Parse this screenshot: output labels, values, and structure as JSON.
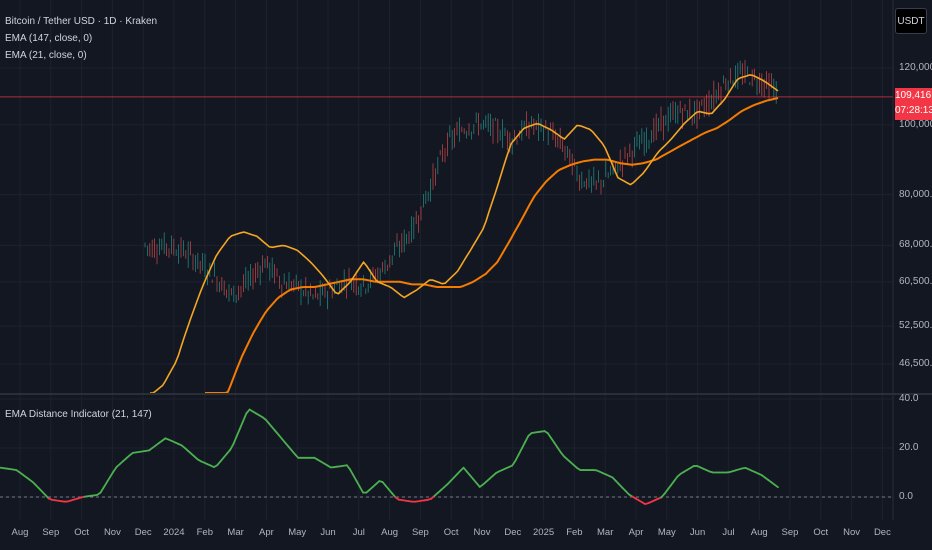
{
  "legend": {
    "title": "Bitcoin / Tether USD · 1D · Kraken",
    "ema_long": "EMA (147, close, 0)",
    "ema_short": "EMA (21, close, 0)"
  },
  "indicator": {
    "label": "EMA Distance Indicator (21, 147)",
    "ticks": [
      {
        "label": "40.0",
        "value": 40
      },
      {
        "label": "20.0",
        "value": 20
      },
      {
        "label": "0.0",
        "value": 0
      }
    ]
  },
  "currency_button": "USDT",
  "price_tag": {
    "price": "109,416.1",
    "countdown": "07:28:13"
  },
  "price_axis": [
    {
      "label": "120,000.0",
      "value": 120000
    },
    {
      "label": "100,000.0",
      "value": 100000
    },
    {
      "label": "80,000.0",
      "value": 80000
    },
    {
      "label": "68,000.0",
      "value": 68000
    },
    {
      "label": "60,500.0",
      "value": 60500
    },
    {
      "label": "52,500.0",
      "value": 52500
    },
    {
      "label": "46,500.0",
      "value": 46500
    }
  ],
  "time_axis": [
    "Aug",
    "Sep",
    "Oct",
    "Nov",
    "Dec",
    "2024",
    "Feb",
    "Mar",
    "Apr",
    "May",
    "Jun",
    "Jul",
    "Aug",
    "Sep",
    "Oct",
    "Nov",
    "Dec",
    "2025",
    "Feb",
    "Mar",
    "Apr",
    "May",
    "Jun",
    "Jul",
    "Aug",
    "Sep",
    "Oct",
    "Nov",
    "Dec"
  ],
  "colors": {
    "background": "#131722",
    "ema_short": "#f5a623",
    "ema_long": "#f57c00",
    "up": "#26a69a",
    "down": "#ef5350",
    "indicator_pos": "#4caf50",
    "indicator_neg": "#f23645",
    "last_price": "#f23645"
  },
  "chart_data": {
    "type": "line",
    "y_scale": "log",
    "last_price": 109416.1,
    "ema_short_series": [
      42000,
      43500,
      47000,
      53500,
      60000,
      66000,
      70000,
      71000,
      70000,
      67500,
      68000,
      67000,
      64500,
      61500,
      58000,
      60500,
      64500,
      60500,
      59500,
      57500,
      59000,
      61000,
      60000,
      62500,
      67000,
      72000,
      82000,
      94000,
      99000,
      100500,
      98500,
      95500,
      100000,
      98500,
      93500,
      84500,
      82500,
      86000,
      91500,
      95500,
      100500,
      104500,
      103500,
      108500,
      116000,
      117500,
      115000,
      111500
    ],
    "ema_long_series": [
      36500,
      39000,
      43000,
      47500,
      51500,
      55000,
      57500,
      59000,
      59500,
      59500,
      60000,
      60500,
      61000,
      61000,
      60500,
      60500,
      60500,
      60000,
      60000,
      59500,
      59500,
      59500,
      60500,
      62000,
      64500,
      69000,
      74000,
      79500,
      83500,
      86500,
      88000,
      89000,
      89500,
      89500,
      88500,
      88000,
      88500,
      89500,
      91500,
      93500,
      95500,
      97500,
      99000,
      101500,
      104500,
      106500,
      108000,
      109000
    ],
    "indicator_series": [
      12,
      11,
      6,
      -1,
      -2,
      0,
      1,
      12,
      18,
      19,
      24,
      21,
      15,
      12,
      20,
      36,
      32,
      24,
      16,
      16,
      12,
      13,
      1,
      7,
      -1,
      -2,
      -1,
      5,
      12,
      4,
      10,
      13,
      26,
      27,
      17,
      11,
      11,
      8,
      1,
      -3,
      0,
      9,
      13,
      10,
      10,
      12,
      9,
      4
    ]
  }
}
